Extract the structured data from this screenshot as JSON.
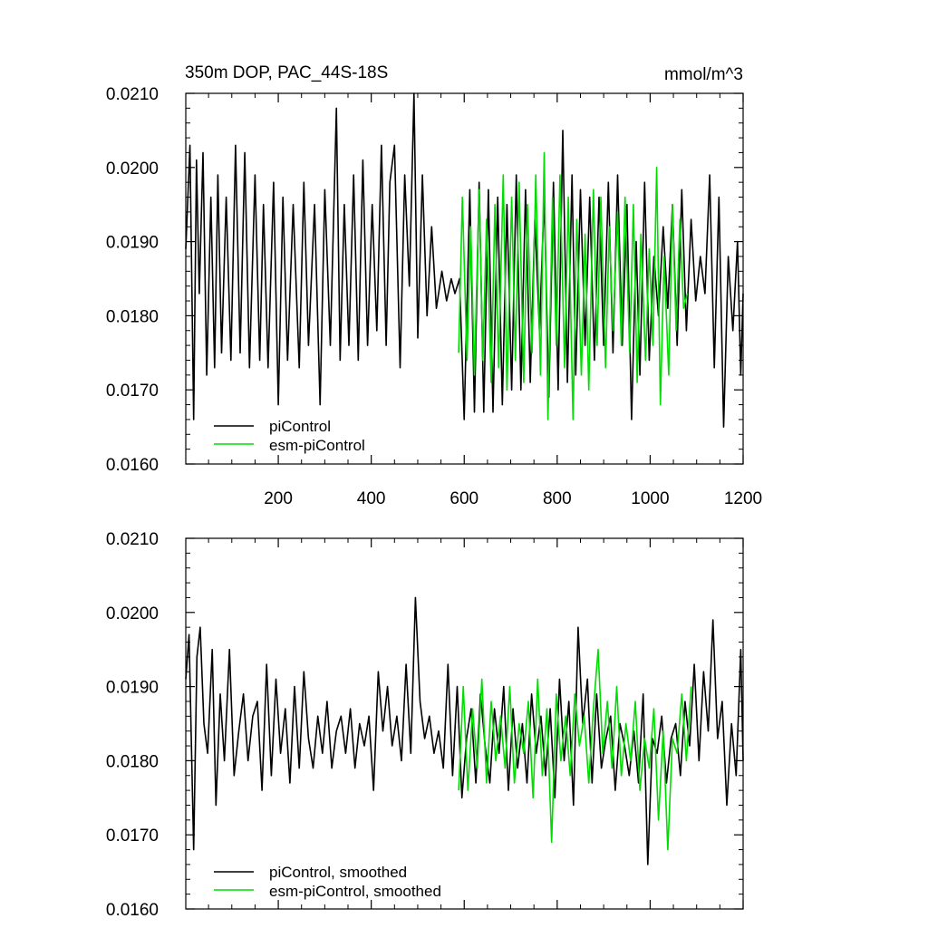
{
  "colors": {
    "pi": "#000000",
    "esm": "#00dd00"
  },
  "chart_data": [
    {
      "type": "line",
      "title_left": "350m DOP, PAC_44S-18S",
      "title_right": "mmol/m^3",
      "xlim": [
        1,
        1200
      ],
      "ylim": [
        0.016,
        0.021
      ],
      "x_ticks": [
        200,
        400,
        600,
        800,
        1000,
        1200
      ],
      "x_ticklabels": [
        "200",
        "400",
        "600",
        "800",
        "1000",
        "1200"
      ],
      "y_ticks": [
        0.016,
        0.017,
        0.018,
        0.019,
        0.02,
        0.021
      ],
      "y_ticklabels": [
        "0.0160",
        "0.0170",
        "0.0180",
        "0.0190",
        "0.0200",
        "0.0210"
      ],
      "legend": {
        "position": "bottom-left",
        "entries": [
          "piControl",
          "esm-piControl"
        ]
      },
      "series": [
        {
          "name": "piControl",
          "color": "#000000",
          "x": [
            1,
            10,
            18,
            24,
            30,
            38,
            46,
            55,
            63,
            70,
            78,
            88,
            98,
            108,
            118,
            128,
            138,
            150,
            160,
            168,
            178,
            190,
            200,
            210,
            220,
            232,
            245,
            255,
            265,
            278,
            290,
            300,
            312,
            325,
            333,
            342,
            352,
            362,
            372,
            382,
            392,
            402,
            412,
            422,
            432,
            440,
            450,
            462,
            472,
            482,
            492,
            500,
            510,
            520,
            530,
            540,
            552,
            562,
            572,
            580,
            590,
            600,
            612,
            622,
            632,
            642,
            652,
            662,
            672,
            682,
            692,
            702,
            712,
            722,
            732,
            742,
            752,
            762,
            772,
            782,
            792,
            802,
            812,
            822,
            832,
            840,
            850,
            860,
            870,
            880,
            890,
            900,
            910,
            920,
            930,
            940,
            950,
            960,
            970,
            978,
            988,
            998,
            1008,
            1018,
            1028,
            1038,
            1048,
            1058,
            1068,
            1078,
            1088,
            1098,
            1108,
            1118,
            1128,
            1138,
            1148,
            1158,
            1168,
            1178,
            1188,
            1195,
            1200
          ],
          "values": [
            0.0189,
            0.0203,
            0.0166,
            0.0201,
            0.0183,
            0.0202,
            0.0172,
            0.0196,
            0.0173,
            0.0199,
            0.0175,
            0.0196,
            0.0174,
            0.0203,
            0.0175,
            0.0202,
            0.0173,
            0.0199,
            0.0174,
            0.0195,
            0.0173,
            0.0198,
            0.0168,
            0.0196,
            0.0174,
            0.0195,
            0.0173,
            0.0198,
            0.0176,
            0.0195,
            0.0168,
            0.0197,
            0.0176,
            0.0208,
            0.0174,
            0.0195,
            0.0176,
            0.0199,
            0.0174,
            0.0201,
            0.0176,
            0.0195,
            0.0178,
            0.0203,
            0.0176,
            0.0198,
            0.0203,
            0.0173,
            0.0199,
            0.0184,
            0.021,
            0.0177,
            0.0199,
            0.018,
            0.0192,
            0.0181,
            0.0186,
            0.0182,
            0.0185,
            0.0183,
            0.0185,
            0.0166,
            0.0197,
            0.0167,
            0.0198,
            0.0167,
            0.0197,
            0.0167,
            0.0196,
            0.0168,
            0.0195,
            0.017,
            0.0199,
            0.017,
            0.0197,
            0.0171,
            0.0193,
            0.0178,
            0.0196,
            0.0169,
            0.0198,
            0.017,
            0.0205,
            0.0171,
            0.0199,
            0.0172,
            0.0197,
            0.0176,
            0.0196,
            0.0174,
            0.0196,
            0.0176,
            0.0198,
            0.0175,
            0.0199,
            0.0176,
            0.0195,
            0.0166,
            0.019,
            0.0172,
            0.0198,
            0.0174,
            0.0188,
            0.018,
            0.0192,
            0.0181,
            0.0195,
            0.0176,
            0.0197,
            0.0178,
            0.0193,
            0.0182,
            0.0188,
            0.0183,
            0.0199,
            0.0173,
            0.0196,
            0.0165,
            0.0188,
            0.0178,
            0.019,
            0.0172,
            0.0183
          ]
        },
        {
          "name": "esm-piControl",
          "color": "#00dd00",
          "x": [
            588,
            596,
            606,
            614,
            622,
            632,
            640,
            648,
            658,
            666,
            674,
            684,
            692,
            702,
            710,
            718,
            728,
            736,
            746,
            754,
            764,
            772,
            780,
            790,
            798,
            806,
            816,
            824,
            834,
            842,
            852,
            860,
            868,
            878,
            886,
            894,
            904,
            912,
            920,
            930,
            938,
            946,
            956,
            964,
            972,
            980,
            990,
            998,
            1006,
            1014,
            1022,
            1030,
            1040,
            1048,
            1056,
            1064,
            1072,
            1080
          ],
          "values": [
            0.0175,
            0.0196,
            0.0174,
            0.0192,
            0.0172,
            0.0197,
            0.0174,
            0.0193,
            0.0171,
            0.0195,
            0.0173,
            0.0199,
            0.017,
            0.0196,
            0.0174,
            0.0198,
            0.0171,
            0.0195,
            0.0175,
            0.0199,
            0.0172,
            0.0202,
            0.0166,
            0.0196,
            0.0176,
            0.0199,
            0.0173,
            0.0196,
            0.0166,
            0.0193,
            0.0172,
            0.0191,
            0.017,
            0.0197,
            0.0176,
            0.0196,
            0.0173,
            0.0192,
            0.0178,
            0.0194,
            0.0176,
            0.0196,
            0.0175,
            0.0195,
            0.0171,
            0.0191,
            0.0174,
            0.0189,
            0.0176,
            0.02,
            0.0168,
            0.0188,
            0.0172,
            0.0195,
            0.0178,
            0.0193,
            0.0181,
            0.0183
          ]
        }
      ]
    },
    {
      "type": "line",
      "xlim": [
        1,
        1200
      ],
      "ylim": [
        0.016,
        0.021
      ],
      "x_ticks": [
        200,
        400,
        600,
        800,
        1000,
        1200
      ],
      "y_ticks": [
        0.016,
        0.017,
        0.018,
        0.019,
        0.02,
        0.021
      ],
      "y_ticklabels": [
        "0.0160",
        "0.0170",
        "0.0180",
        "0.0190",
        "0.0200",
        "0.0210"
      ],
      "legend": {
        "position": "bottom-left",
        "entries": [
          "piControl, smoothed",
          "esm-piControl, smoothed"
        ]
      },
      "series": [
        {
          "name": "piControl, smoothed",
          "color": "#000000",
          "x": [
            1,
            8,
            18,
            25,
            32,
            40,
            48,
            58,
            66,
            75,
            84,
            95,
            105,
            115,
            125,
            135,
            145,
            155,
            165,
            175,
            185,
            195,
            205,
            215,
            225,
            235,
            245,
            255,
            265,
            275,
            285,
            295,
            305,
            315,
            325,
            335,
            345,
            355,
            365,
            375,
            385,
            395,
            405,
            415,
            425,
            435,
            445,
            455,
            465,
            475,
            485,
            495,
            505,
            515,
            525,
            535,
            545,
            555,
            565,
            575,
            585,
            595,
            605,
            615,
            625,
            635,
            645,
            655,
            665,
            675,
            685,
            695,
            705,
            715,
            725,
            735,
            745,
            755,
            765,
            775,
            785,
            795,
            805,
            815,
            825,
            835,
            845,
            855,
            865,
            875,
            885,
            895,
            905,
            915,
            925,
            935,
            945,
            955,
            965,
            975,
            985,
            995,
            1005,
            1015,
            1025,
            1035,
            1045,
            1055,
            1065,
            1075,
            1085,
            1095,
            1105,
            1115,
            1125,
            1135,
            1145,
            1155,
            1165,
            1175,
            1185,
            1195,
            1200
          ],
          "values": [
            0.0191,
            0.0197,
            0.0168,
            0.0194,
            0.0198,
            0.0185,
            0.0181,
            0.0195,
            0.0174,
            0.0189,
            0.018,
            0.0195,
            0.0178,
            0.0184,
            0.0189,
            0.018,
            0.0186,
            0.0188,
            0.0176,
            0.0193,
            0.0178,
            0.0191,
            0.0181,
            0.0187,
            0.0177,
            0.019,
            0.0179,
            0.0192,
            0.0183,
            0.0179,
            0.0186,
            0.0181,
            0.0188,
            0.0179,
            0.0184,
            0.0186,
            0.0181,
            0.0187,
            0.0179,
            0.0185,
            0.0182,
            0.0186,
            0.0176,
            0.0192,
            0.0184,
            0.019,
            0.0182,
            0.0186,
            0.018,
            0.0193,
            0.0181,
            0.0202,
            0.0188,
            0.0183,
            0.0186,
            0.0181,
            0.0184,
            0.0179,
            0.0193,
            0.0178,
            0.019,
            0.0175,
            0.0183,
            0.0187,
            0.0177,
            0.0189,
            0.0182,
            0.0177,
            0.0187,
            0.0181,
            0.019,
            0.0176,
            0.0187,
            0.0179,
            0.0185,
            0.0177,
            0.0189,
            0.0181,
            0.0186,
            0.0178,
            0.0187,
            0.0175,
            0.0191,
            0.018,
            0.0188,
            0.0174,
            0.0198,
            0.0185,
            0.0191,
            0.0177,
            0.0189,
            0.0179,
            0.0183,
            0.0186,
            0.0176,
            0.0185,
            0.0182,
            0.0178,
            0.0184,
            0.0177,
            0.0189,
            0.0166,
            0.0183,
            0.0181,
            0.0186,
            0.0177,
            0.0183,
            0.0185,
            0.0178,
            0.0188,
            0.0182,
            0.0193,
            0.018,
            0.0192,
            0.0184,
            0.0199,
            0.0183,
            0.0188,
            0.0174,
            0.0185,
            0.0178,
            0.0195,
            0.018
          ]
        },
        {
          "name": "esm-piControl, smoothed",
          "color": "#00dd00",
          "x": [
            588,
            598,
            608,
            618,
            628,
            638,
            648,
            658,
            668,
            678,
            688,
            698,
            708,
            718,
            728,
            738,
            748,
            758,
            768,
            778,
            788,
            798,
            808,
            818,
            828,
            838,
            848,
            858,
            868,
            878,
            888,
            898,
            908,
            918,
            928,
            938,
            948,
            958,
            968,
            978,
            988,
            998,
            1008,
            1018,
            1028,
            1038,
            1048,
            1058,
            1068,
            1078,
            1088
          ],
          "values": [
            0.0176,
            0.019,
            0.0176,
            0.0187,
            0.0179,
            0.0191,
            0.0177,
            0.0188,
            0.018,
            0.0186,
            0.0179,
            0.019,
            0.0177,
            0.0185,
            0.0181,
            0.0188,
            0.0175,
            0.0191,
            0.0178,
            0.0187,
            0.0169,
            0.0189,
            0.018,
            0.0186,
            0.0178,
            0.0189,
            0.0182,
            0.0186,
            0.0177,
            0.0187,
            0.0195,
            0.0181,
            0.0188,
            0.0179,
            0.019,
            0.0178,
            0.0185,
            0.018,
            0.0188,
            0.0176,
            0.0183,
            0.0179,
            0.0187,
            0.0172,
            0.0184,
            0.0168,
            0.0183,
            0.0181,
            0.0189,
            0.018,
            0.019
          ]
        }
      ]
    }
  ]
}
